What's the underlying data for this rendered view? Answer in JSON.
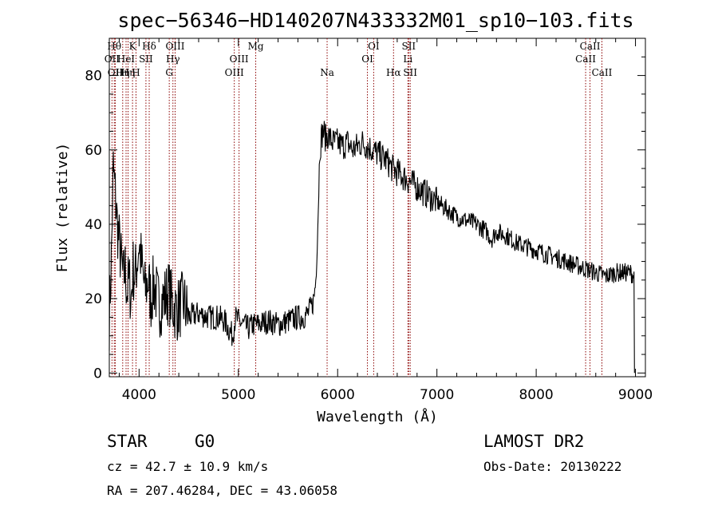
{
  "chart_data": {
    "type": "line",
    "title": "spec−56346−HD140207N433332M01_sp10−103.fits",
    "xlabel": "Wavelength (Å)",
    "ylabel": "Flux (relative)",
    "xlim": [
      3700,
      9100
    ],
    "ylim": [
      -1,
      90
    ],
    "x_ticks": [
      4000,
      5000,
      6000,
      7000,
      8000,
      9000
    ],
    "y_ticks": [
      0,
      20,
      40,
      60,
      80
    ],
    "grid": false,
    "series": [
      {
        "color": "#000000",
        "x": [
          3700,
          3720,
          3740,
          3760,
          3780,
          3800,
          3820,
          3840,
          3860,
          3880,
          3900,
          3920,
          3940,
          3960,
          3980,
          4000,
          4030,
          4060,
          4090,
          4120,
          4150,
          4200,
          4250,
          4300,
          4340,
          4380,
          4450,
          4500,
          4600,
          4700,
          4800,
          4860,
          4900,
          4940,
          4970,
          5000,
          5050,
          5100,
          5150,
          5200,
          5300,
          5400,
          5500,
          5600,
          5650,
          5700,
          5740,
          5760,
          5780,
          5800,
          5820,
          5840,
          5860,
          5880,
          5900,
          5950,
          6000,
          6050,
          6100,
          6150,
          6200,
          6250,
          6300,
          6350,
          6400,
          6450,
          6500,
          6550,
          6600,
          6650,
          6700,
          6750,
          6800,
          6850,
          6900,
          7000,
          7100,
          7200,
          7300,
          7400,
          7500,
          7550,
          7600,
          7700,
          7800,
          7900,
          8000,
          8100,
          8200,
          8300,
          8400,
          8500,
          8600,
          8700,
          8800,
          8900,
          8950,
          8990
        ],
        "y": [
          15,
          30,
          55,
          48,
          40,
          35,
          30,
          25,
          28,
          22,
          25,
          20,
          28,
          26,
          30,
          35,
          28,
          22,
          25,
          20,
          24,
          18,
          20,
          22,
          18,
          17,
          19,
          15,
          16,
          15,
          15,
          14,
          12,
          10,
          15,
          14,
          13,
          12,
          13,
          13,
          14,
          13,
          14,
          15,
          15,
          16,
          18,
          20,
          25,
          40,
          60,
          64,
          65,
          63,
          64,
          62,
          62,
          61,
          62,
          60,
          61,
          62,
          61,
          60,
          59,
          58,
          57,
          55,
          54,
          53,
          52,
          51,
          50,
          49,
          48,
          46,
          44,
          42,
          41,
          40,
          38,
          36,
          38,
          37,
          35,
          34,
          33,
          32,
          31,
          30,
          29,
          28,
          27,
          26,
          27,
          27,
          27,
          26
        ]
      }
    ],
    "annotations": [
      {
        "x": 3727,
        "label": "OII",
        "row": 2
      },
      {
        "x": 3750,
        "label": "Hθ",
        "row": 1
      },
      {
        "x": 3760,
        "label": "OII",
        "row": 3
      },
      {
        "x": 3835,
        "label": "Hη",
        "row": 3
      },
      {
        "x": 3869,
        "label": "HeI",
        "row": 2
      },
      {
        "x": 3889,
        "label": "Hη",
        "row": 3
      },
      {
        "x": 3934,
        "label": "K",
        "row": 1
      },
      {
        "x": 3969,
        "label": "H",
        "row": 3
      },
      {
        "x": 4069,
        "label": "SII",
        "row": 2
      },
      {
        "x": 4102,
        "label": "Hδ",
        "row": 1
      },
      {
        "x": 4304,
        "label": "G",
        "row": 3
      },
      {
        "x": 4341,
        "label": "Hγ",
        "row": 2
      },
      {
        "x": 4363,
        "label": "OIII",
        "row": 1
      },
      {
        "x": 4959,
        "label": "OIII",
        "row": 3
      },
      {
        "x": 5007,
        "label": "OIII",
        "row": 2
      },
      {
        "x": 5175,
        "label": "Mg",
        "row": 1
      },
      {
        "x": 5894,
        "label": "Na",
        "row": 3
      },
      {
        "x": 6300,
        "label": "OI",
        "row": 2
      },
      {
        "x": 6363,
        "label": "OI",
        "row": 1
      },
      {
        "x": 6563,
        "label": "Hα",
        "row": 3
      },
      {
        "x": 6708,
        "label": "Li",
        "row": 2
      },
      {
        "x": 6716,
        "label": "SII",
        "row": 1
      },
      {
        "x": 6731,
        "label": "SII",
        "row": 3
      },
      {
        "x": 8498,
        "label": "CaII",
        "row": 2
      },
      {
        "x": 8542,
        "label": "CaII",
        "row": 1
      },
      {
        "x": 8662,
        "label": "CaII",
        "row": 3
      }
    ],
    "line_color": "#8b0000"
  },
  "info": {
    "class": "STAR",
    "subclass": "G0",
    "survey": "LAMOST DR2",
    "redshift": "cz = 42.7 ± 10.9 km/s",
    "obs_date": "Obs-Date: 20130222",
    "coords": "RA = 207.46284, DEC =  43.06058"
  }
}
